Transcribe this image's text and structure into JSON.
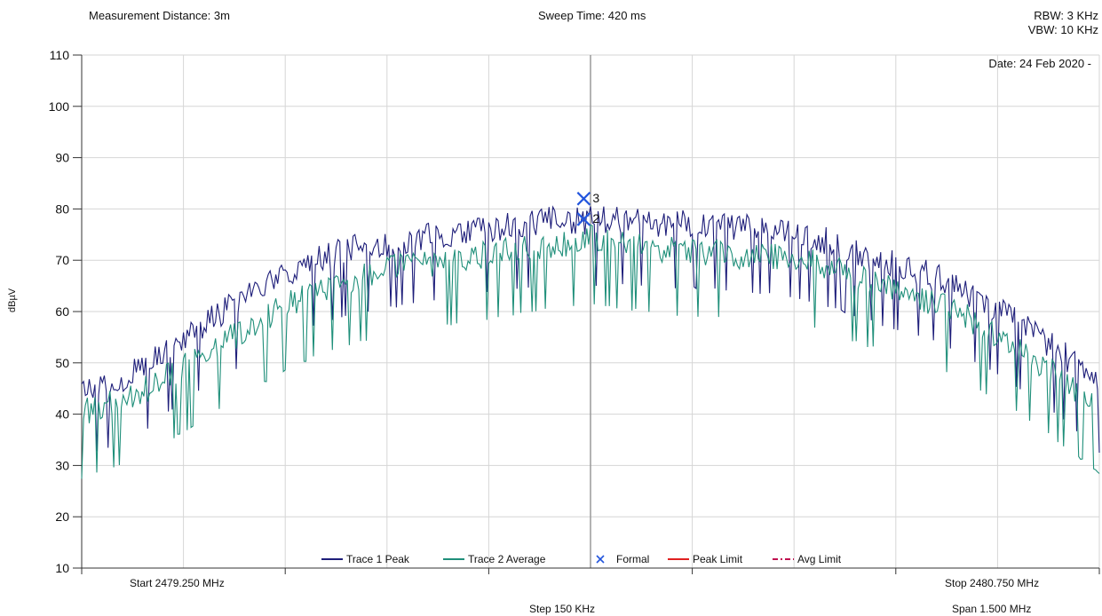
{
  "header": {
    "measurement_distance": "Measurement Distance: 3m",
    "sweep_time": "Sweep Time: 420 ms",
    "rbw": "RBW: 3 KHz",
    "vbw": "VBW: 10 KHz",
    "date": "Date: 24 Feb 2020 -"
  },
  "footer": {
    "start": "Start 2479.250 MHz",
    "stop": "Stop 2480.750 MHz",
    "step": "Step 150 KHz",
    "span": "Span 1.500 MHz"
  },
  "chart_data": {
    "type": "line",
    "ylabel": "dBµV",
    "xlabel": "",
    "ylim": [
      10,
      110
    ],
    "yticks": [
      10,
      20,
      30,
      40,
      50,
      60,
      70,
      80,
      90,
      100,
      110
    ],
    "xlim": [
      2479.25,
      2480.75
    ],
    "x_unit": "MHz",
    "grid": true,
    "legend_position": "bottom-center",
    "series": [
      {
        "name": "Trace 1 Peak",
        "color": "#1e1e7a",
        "x": [
          2479.25,
          2479.3,
          2479.35,
          2479.4,
          2479.45,
          2479.5,
          2479.55,
          2479.6,
          2479.65,
          2479.7,
          2479.75,
          2479.8,
          2479.85,
          2479.9,
          2479.95,
          2480.0,
          2480.05,
          2480.1,
          2480.15,
          2480.2,
          2480.25,
          2480.3,
          2480.35,
          2480.4,
          2480.45,
          2480.5,
          2480.55,
          2480.6,
          2480.65,
          2480.7,
          2480.75
        ],
        "values": [
          44,
          46,
          50,
          55,
          59,
          63,
          67,
          70,
          72,
          73,
          74,
          75,
          76,
          77,
          77.5,
          77.5,
          77.5,
          77,
          77,
          76.5,
          76,
          75,
          73.5,
          71,
          69,
          67,
          64,
          60,
          56,
          51,
          45
        ]
      },
      {
        "name": "Trace 2 Average",
        "color": "#1f8f7a",
        "x": [
          2479.25,
          2479.3,
          2479.35,
          2479.4,
          2479.45,
          2479.5,
          2479.55,
          2479.6,
          2479.65,
          2479.7,
          2479.75,
          2479.8,
          2479.85,
          2479.9,
          2479.95,
          2480.0,
          2480.05,
          2480.1,
          2480.15,
          2480.2,
          2480.25,
          2480.3,
          2480.35,
          2480.4,
          2480.45,
          2480.5,
          2480.55,
          2480.6,
          2480.65,
          2480.7,
          2480.75
        ],
        "values": [
          40,
          42,
          45,
          49,
          53,
          57,
          61,
          64,
          66,
          68,
          69,
          70,
          71,
          72,
          73,
          74,
          73,
          72,
          71.5,
          71,
          70.5,
          70,
          68.5,
          66,
          64,
          62,
          59,
          55,
          51,
          46,
          41
        ]
      }
    ],
    "markers": [
      {
        "label": "3",
        "x": 2479.99,
        "y": 82,
        "color": "#2255dd"
      },
      {
        "label": "2",
        "x": 2479.99,
        "y": 78,
        "color": "#2255dd"
      }
    ],
    "center_line_x": 2480.0,
    "legend": [
      {
        "name": "Trace 1 Peak",
        "style": "line",
        "color": "#1e1e7a"
      },
      {
        "name": "Trace 2 Average",
        "style": "line",
        "color": "#1f8f7a"
      },
      {
        "name": "Formal",
        "style": "x",
        "color": "#2255dd"
      },
      {
        "name": "Peak Limit",
        "style": "line",
        "color": "#e02020"
      },
      {
        "name": "Avg Limit",
        "style": "dashdot",
        "color": "#c01050"
      }
    ]
  }
}
